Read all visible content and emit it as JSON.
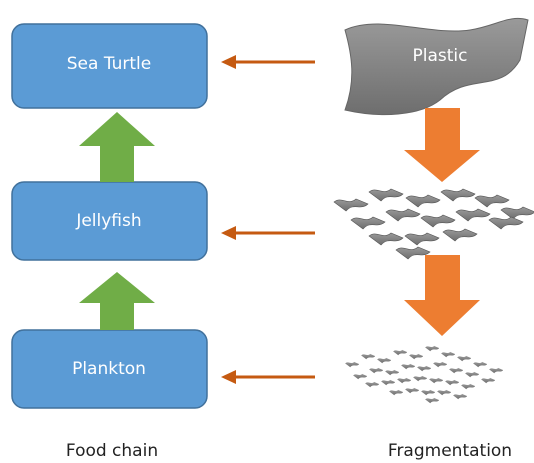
{
  "food_chain": {
    "label": "Food chain",
    "nodes": [
      {
        "label": "Sea Turtle"
      },
      {
        "label": "Jellyfish"
      },
      {
        "label": "Plankton"
      }
    ]
  },
  "fragmentation": {
    "label": "Fragmentation",
    "nodes": [
      {
        "label": "Plastic"
      }
    ]
  }
}
